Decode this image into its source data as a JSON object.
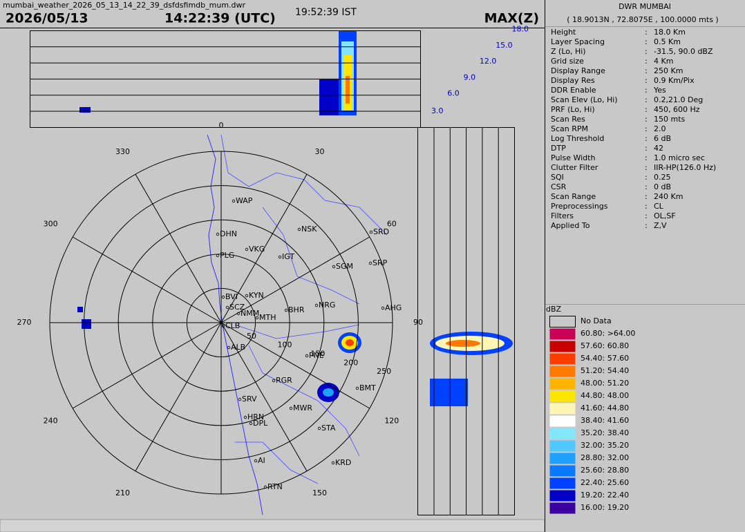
{
  "header": {
    "filename": "mumbai_weather_2026_05_13_14_22_39_dsfdsfimdb_mum.dwr",
    "date": "2026/05/13",
    "utc": "14:22:39 (UTC)",
    "ist": "19:52:39 IST",
    "product": "MAX(Z)"
  },
  "panel": {
    "station": "DWR MUMBAI",
    "coords": "( 18.9013N , 72.8075E , 100.0000 mts )",
    "separator": ":",
    "params": [
      [
        "Height",
        "18.0 Km"
      ],
      [
        "Layer Spacing",
        "0.5 Km"
      ],
      [
        "Z (Lo, Hi)",
        "-31.5, 90.0 dBZ"
      ],
      [
        "Grid size",
        "4 Km"
      ],
      [
        "Display Range",
        "250 Km"
      ],
      [
        "Display Res",
        "0.9 Km/Pix"
      ],
      [
        "DDR Enable",
        "Yes"
      ],
      [
        "Scan Elev (Lo, Hi)",
        "0.2,21.0 Deg"
      ],
      [
        "PRF (Lo, Hi)",
        "450, 600 Hz"
      ],
      [
        "Scan Res",
        "150 mts"
      ],
      [
        "Scan RPM",
        "2.0"
      ],
      [
        "Log Threshold",
        "6 dB"
      ],
      [
        "DTP",
        "42"
      ],
      [
        "Pulse Width",
        "1.0 micro sec"
      ],
      [
        "Clutter Filter",
        "IIR-HP(126.0 Hz)"
      ],
      [
        "SQI",
        "0.25"
      ],
      [
        "CSR",
        "0 dB"
      ],
      [
        "Scan Range",
        "240 Km"
      ],
      [
        "Preprocessings",
        "CL"
      ],
      [
        "Filters",
        "OL,SF"
      ],
      [
        "Applied To",
        "Z,V"
      ]
    ]
  },
  "legend": {
    "title": "dBZ",
    "items": [
      {
        "label": "No Data",
        "color": "#c8c8c8"
      },
      {
        "label": "60.80: >64.00",
        "color": "#c8005a"
      },
      {
        "label": "57.60: 60.80",
        "color": "#c80000"
      },
      {
        "label": "54.40: 57.60",
        "color": "#ff3c00"
      },
      {
        "label": "51.20: 54.40",
        "color": "#ff7800"
      },
      {
        "label": "48.00: 51.20",
        "color": "#ffb400"
      },
      {
        "label": "44.80: 48.00",
        "color": "#ffe600"
      },
      {
        "label": "41.60: 44.80",
        "color": "#fff5b4"
      },
      {
        "label": "38.40: 41.60",
        "color": "#ffffff"
      },
      {
        "label": "35.20: 38.40",
        "color": "#82e6ff"
      },
      {
        "label": "32.00: 35.20",
        "color": "#50c8ff"
      },
      {
        "label": "28.80: 32.00",
        "color": "#1ea0ff"
      },
      {
        "label": "25.60: 28.80",
        "color": "#0a78ff"
      },
      {
        "label": "22.40: 25.60",
        "color": "#0040ff"
      },
      {
        "label": "19.20: 22.40",
        "color": "#0000c8"
      },
      {
        "label": "16.00: 19.20",
        "color": "#3c00a0"
      }
    ]
  },
  "ppi": {
    "azimuths": [
      0,
      30,
      60,
      90,
      120,
      150,
      210,
      240,
      270,
      300,
      330
    ],
    "ranges": [
      50,
      100,
      150,
      200,
      250
    ],
    "places": [
      "WAP",
      "DHN",
      "VKG",
      "PLG",
      "NSK",
      "SRD",
      "IGT",
      "SGM",
      "SRP",
      "KYN",
      "BVI",
      "SCZ",
      "NMM",
      "BHR",
      "NRG",
      "AHG",
      "MTH",
      "CLB",
      "ALB",
      "PNE",
      "RGR",
      "BMT",
      "SRV",
      "HRN",
      "DPL",
      "MWR",
      "STA",
      "KRD",
      "AI",
      "RTN"
    ]
  },
  "profile": {
    "heights": [
      "3.0",
      "6.0",
      "9.0",
      "12.0",
      "15.0",
      "18.0"
    ]
  }
}
